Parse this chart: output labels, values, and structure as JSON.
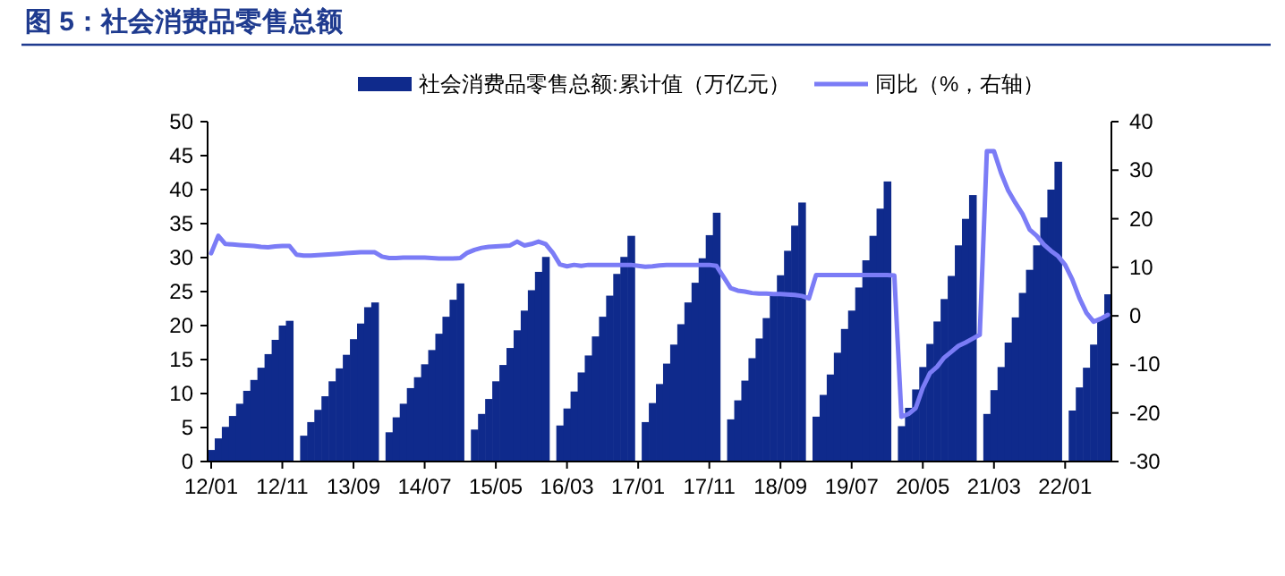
{
  "chart_data": {
    "type": "bar",
    "title": "图 5：社会消费品零售总额",
    "categories": [
      "12/01",
      null,
      null,
      null,
      null,
      null,
      null,
      null,
      null,
      null,
      "12/11",
      null,
      null,
      null,
      null,
      null,
      null,
      null,
      null,
      null,
      "13/09",
      null,
      null,
      null,
      null,
      null,
      null,
      null,
      null,
      null,
      "14/07",
      null,
      null,
      null,
      null,
      null,
      null,
      null,
      null,
      null,
      "15/05",
      null,
      null,
      null,
      null,
      null,
      null,
      null,
      null,
      null,
      "16/03",
      null,
      null,
      null,
      null,
      null,
      null,
      null,
      null,
      null,
      "17/01",
      null,
      null,
      null,
      null,
      null,
      null,
      null,
      null,
      null,
      "17/11",
      null,
      null,
      null,
      null,
      null,
      null,
      null,
      null,
      null,
      "18/09",
      null,
      null,
      null,
      null,
      null,
      null,
      null,
      null,
      null,
      "19/07",
      null,
      null,
      null,
      null,
      null,
      null,
      null,
      null,
      null,
      "20/05",
      null,
      null,
      null,
      null,
      null,
      null,
      null,
      null,
      null,
      "21/03",
      null,
      null,
      null,
      null,
      null,
      null,
      null,
      null,
      null,
      "22/01",
      null,
      null,
      null,
      null,
      null,
      null
    ],
    "series": [
      {
        "name": "社会消费品零售总额:累计值（万亿元）",
        "color": "#0f2a8c",
        "values": [
          1.7,
          3.4,
          5.1,
          6.7,
          8.5,
          10.4,
          12.0,
          13.8,
          15.8,
          17.9,
          20.0,
          20.7,
          null,
          3.8,
          5.8,
          7.6,
          9.6,
          11.8,
          13.7,
          15.7,
          18.0,
          20.3,
          22.7,
          23.4,
          null,
          4.3,
          6.5,
          8.5,
          10.8,
          12.4,
          14.3,
          16.4,
          18.8,
          21.3,
          23.8,
          26.2,
          null,
          4.7,
          7.0,
          9.2,
          11.8,
          14.2,
          16.7,
          19.3,
          22.2,
          25.2,
          27.9,
          30.1,
          null,
          5.3,
          7.8,
          10.3,
          13.1,
          15.6,
          18.4,
          21.3,
          24.4,
          27.6,
          30.1,
          33.2,
          null,
          5.8,
          8.6,
          11.4,
          14.4,
          17.2,
          20.2,
          23.4,
          26.3,
          29.9,
          33.3,
          36.6,
          null,
          6.2,
          9.0,
          11.9,
          15.2,
          18.1,
          21.1,
          24.4,
          27.4,
          31.0,
          34.7,
          38.1,
          null,
          6.6,
          9.8,
          12.8,
          16.0,
          19.5,
          22.2,
          25.6,
          29.6,
          33.2,
          37.2,
          41.2,
          null,
          5.2,
          7.9,
          10.6,
          13.9,
          17.3,
          20.6,
          23.9,
          27.3,
          31.8,
          35.7,
          39.2,
          null,
          7.0,
          10.5,
          13.9,
          17.5,
          21.2,
          24.8,
          28.2,
          31.8,
          35.9,
          40.0,
          44.1,
          null,
          7.5,
          10.9,
          13.8,
          17.2,
          21.0,
          24.6
        ]
      },
      {
        "name": "同比（%，右轴）",
        "type": "line",
        "axis": "y2",
        "color": "#7b7cf6",
        "values": [
          12.9,
          16.5,
          14.8,
          14.7,
          14.6,
          14.5,
          14.4,
          14.2,
          14.1,
          14.3,
          14.4,
          14.4,
          12.6,
          12.4,
          12.4,
          12.5,
          12.6,
          12.7,
          12.8,
          12.9,
          13.0,
          13.1,
          13.1,
          13.1,
          12.2,
          11.9,
          11.9,
          12.0,
          12.0,
          12.0,
          12.0,
          11.9,
          11.8,
          11.8,
          11.8,
          11.9,
          13.0,
          13.6,
          14.0,
          14.2,
          14.3,
          14.4,
          14.5,
          15.3,
          14.5,
          14.8,
          15.3,
          14.8,
          13.0,
          10.6,
          10.2,
          10.5,
          10.3,
          10.5,
          10.5,
          10.5,
          10.5,
          10.5,
          10.5,
          10.5,
          10.3,
          10.1,
          10.2,
          10.4,
          10.5,
          10.5,
          10.5,
          10.5,
          10.5,
          10.5,
          10.5,
          10.3,
          8.0,
          5.7,
          5.2,
          5.0,
          4.7,
          4.6,
          4.6,
          4.5,
          4.5,
          4.4,
          4.3,
          4.1,
          3.6,
          8.4,
          8.4,
          8.4,
          8.4,
          8.4,
          8.4,
          8.4,
          8.4,
          8.4,
          8.4,
          8.4,
          8.3,
          -20.8,
          -20.2,
          -19.0,
          -14.8,
          -11.8,
          -10.5,
          -8.6,
          -7.4,
          -6.2,
          -5.5,
          -4.7,
          -3.9,
          33.9,
          33.9,
          29.4,
          25.8,
          23.3,
          21.0,
          17.8,
          16.5,
          14.7,
          13.4,
          12.3,
          10.5,
          7.5,
          3.7,
          0.6,
          -1.2,
          -0.6,
          0.2
        ]
      }
    ],
    "ylim": [
      0,
      50
    ],
    "yticks": [
      0,
      5,
      10,
      15,
      20,
      25,
      30,
      35,
      40,
      45,
      50
    ],
    "y2lim": [
      -30,
      40
    ],
    "y2ticks": [
      -30,
      -20,
      -10,
      0,
      10,
      20,
      30,
      40
    ],
    "legend": "top"
  }
}
